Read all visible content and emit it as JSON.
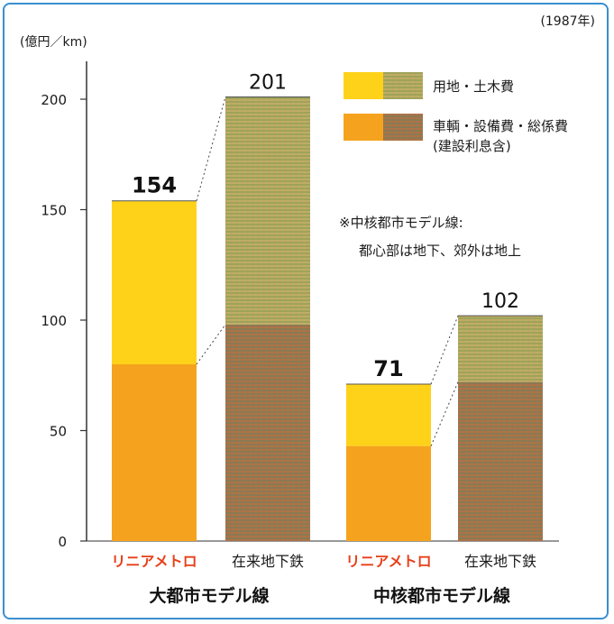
{
  "chart_data": {
    "type": "bar",
    "stacked": true,
    "year_note": "(1987年)",
    "ylabel": "(億円／km)",
    "ylim": [
      0,
      220
    ],
    "yticks": [
      0,
      50,
      100,
      150,
      200
    ],
    "groups": [
      {
        "label": "大都市モデル線",
        "bars": [
          {
            "label": "リニアメトロ",
            "label_color": "#e8401a",
            "segments": [
              80,
              74
            ],
            "total": 154,
            "conventional": false
          },
          {
            "label": "在来地下鉄",
            "label_color": "#1a1a1a",
            "segments": [
              98,
              103
            ],
            "total": 201,
            "conventional": true
          }
        ]
      },
      {
        "label": "中核都市モデル線",
        "bars": [
          {
            "label": "リニアメトロ",
            "label_color": "#e8401a",
            "segments": [
              43,
              28
            ],
            "total": 71,
            "conventional": false
          },
          {
            "label": "在来地下鉄",
            "label_color": "#1a1a1a",
            "segments": [
              72,
              30
            ],
            "total": 102,
            "conventional": true
          }
        ]
      }
    ],
    "series": [
      {
        "name": "車輌・設備費・総係費",
        "sub": "(建設利息含)",
        "color": "#f5a31e",
        "pattern_color": "#a07a4a"
      },
      {
        "name": "用地・土木費",
        "sub": "",
        "color": "#ffd21a",
        "pattern_color": "#b8b060"
      }
    ],
    "annotation": [
      "※中核都市モデル線:",
      "都心部は地下、郊外は地上"
    ]
  }
}
